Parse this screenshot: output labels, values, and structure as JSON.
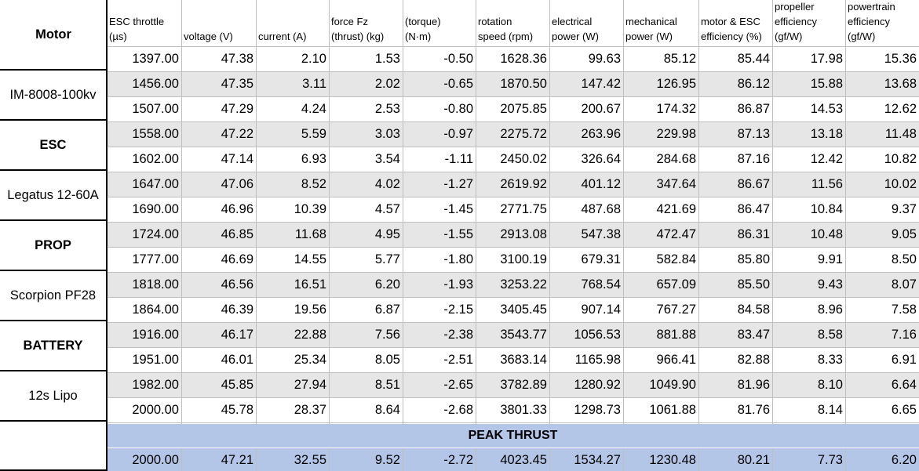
{
  "headers": [
    [
      "ESC throttle",
      "(µs)"
    ],
    [
      "",
      "voltage (V)"
    ],
    [
      "",
      "current (A)"
    ],
    [
      "force Fz",
      "(thrust) (kg)"
    ],
    [
      "(torque)",
      "(N·m)"
    ],
    [
      "rotation",
      "speed (rpm)"
    ],
    [
      "electrical",
      "power (W)"
    ],
    [
      "mechanical",
      "power (W)"
    ],
    [
      "motor & ESC",
      "efficiency (%)"
    ],
    [
      "propeller",
      "efficiency",
      "(gf/W)"
    ],
    [
      "powertrain",
      "efficiency",
      "(gf/W)"
    ]
  ],
  "motor_header": "Motor",
  "side_labels": [
    {
      "text": "IM-8008-100kv",
      "bold": false
    },
    {
      "text": "ESC",
      "bold": true
    },
    {
      "text": "Legatus 12-60A",
      "bold": false
    },
    {
      "text": "PROP",
      "bold": true
    },
    {
      "text": "Scorpion PF28",
      "bold": false
    },
    {
      "text": "BATTERY",
      "bold": true
    },
    {
      "text": "12s Lipo",
      "bold": false
    }
  ],
  "rows": [
    [
      "1397.00",
      "47.38",
      "2.10",
      "1.53",
      "-0.50",
      "1628.36",
      "99.63",
      "85.12",
      "85.44",
      "17.98",
      "15.36"
    ],
    [
      "1456.00",
      "47.35",
      "3.11",
      "2.02",
      "-0.65",
      "1870.50",
      "147.42",
      "126.95",
      "86.12",
      "15.88",
      "13.68"
    ],
    [
      "1507.00",
      "47.29",
      "4.24",
      "2.53",
      "-0.80",
      "2075.85",
      "200.67",
      "174.32",
      "86.87",
      "14.53",
      "12.62"
    ],
    [
      "1558.00",
      "47.22",
      "5.59",
      "3.03",
      "-0.97",
      "2275.72",
      "263.96",
      "229.98",
      "87.13",
      "13.18",
      "11.48"
    ],
    [
      "1602.00",
      "47.14",
      "6.93",
      "3.54",
      "-1.11",
      "2450.02",
      "326.64",
      "284.68",
      "87.16",
      "12.42",
      "10.82"
    ],
    [
      "1647.00",
      "47.06",
      "8.52",
      "4.02",
      "-1.27",
      "2619.92",
      "401.12",
      "347.64",
      "86.67",
      "11.56",
      "10.02"
    ],
    [
      "1690.00",
      "46.96",
      "10.39",
      "4.57",
      "-1.45",
      "2771.75",
      "487.68",
      "421.69",
      "86.47",
      "10.84",
      "9.37"
    ],
    [
      "1724.00",
      "46.85",
      "11.68",
      "4.95",
      "-1.55",
      "2913.08",
      "547.38",
      "472.47",
      "86.31",
      "10.48",
      "9.05"
    ],
    [
      "1777.00",
      "46.69",
      "14.55",
      "5.77",
      "-1.80",
      "3100.19",
      "679.31",
      "582.84",
      "85.80",
      "9.91",
      "8.50"
    ],
    [
      "1818.00",
      "46.56",
      "16.51",
      "6.20",
      "-1.93",
      "3253.22",
      "768.54",
      "657.09",
      "85.50",
      "9.43",
      "8.07"
    ],
    [
      "1864.00",
      "46.39",
      "19.56",
      "6.87",
      "-2.15",
      "3405.45",
      "907.14",
      "767.27",
      "84.58",
      "8.96",
      "7.58"
    ],
    [
      "1916.00",
      "46.17",
      "22.88",
      "7.56",
      "-2.38",
      "3543.77",
      "1056.53",
      "881.88",
      "83.47",
      "8.58",
      "7.16"
    ],
    [
      "1951.00",
      "46.01",
      "25.34",
      "8.05",
      "-2.51",
      "3683.14",
      "1165.98",
      "966.41",
      "82.88",
      "8.33",
      "6.91"
    ],
    [
      "1982.00",
      "45.85",
      "27.94",
      "8.51",
      "-2.65",
      "3782.89",
      "1280.92",
      "1049.90",
      "81.96",
      "8.10",
      "6.64"
    ],
    [
      "2000.00",
      "45.78",
      "28.37",
      "8.64",
      "-2.68",
      "3801.33",
      "1298.73",
      "1061.88",
      "81.76",
      "8.14",
      "6.65"
    ]
  ],
  "peak_label": "PEAK THRUST",
  "peak_row": [
    "2000.00",
    "47.21",
    "32.55",
    "9.52",
    "-2.72",
    "4023.45",
    "1534.27",
    "1230.48",
    "80.21",
    "7.73",
    "6.20"
  ],
  "colors": {
    "band_gray": "#e6e6e6",
    "peak_blue": "#b4c6e7",
    "grid": "#bfbfbf",
    "border": "#000000"
  }
}
